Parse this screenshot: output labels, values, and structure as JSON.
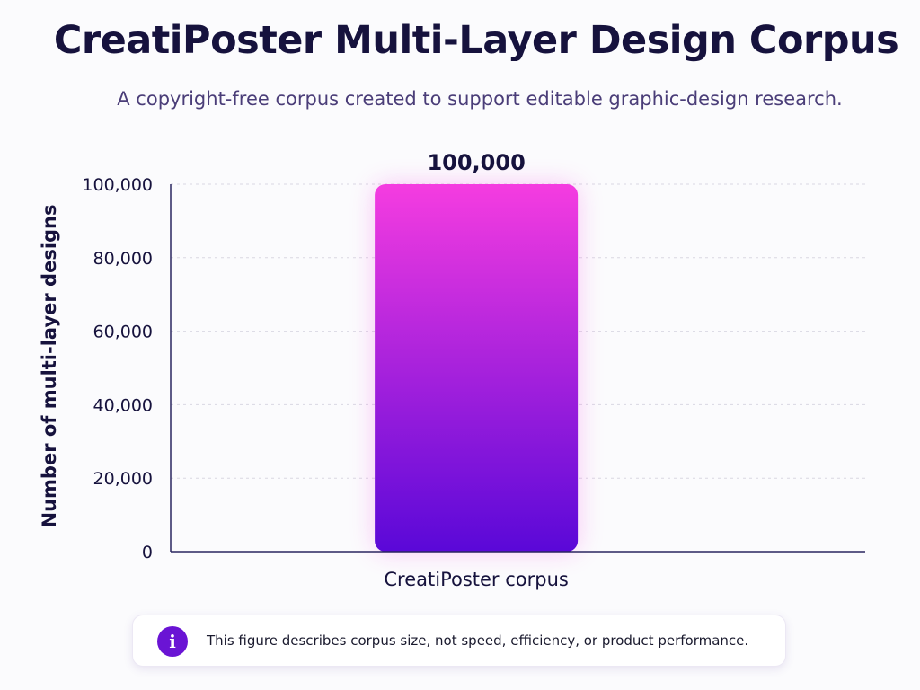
{
  "header": {
    "title": "CreatiPoster Multi-Layer Design Corpus",
    "subtitle": "A copyright-free corpus created to support editable graphic-design research."
  },
  "chart_data": {
    "type": "bar",
    "categories": [
      "CreatiPoster corpus"
    ],
    "values": [
      100000
    ],
    "data_labels": [
      "100,000"
    ],
    "ylabel": "Number of multi-layer designs",
    "ylim": [
      0,
      100000
    ],
    "yticks": [
      0,
      20000,
      40000,
      60000,
      80000,
      100000
    ],
    "ytick_labels": [
      "0",
      "20,000",
      "40,000",
      "60,000",
      "80,000",
      "100,000"
    ],
    "grid": true,
    "legend": "none",
    "colors": {
      "bar_top": "#f53ce0",
      "bar_bottom": "#5a08d8",
      "axis": "#2a2660",
      "grid": "#d9d7e2",
      "text": "#16123d"
    }
  },
  "note": {
    "icon": "info-icon",
    "icon_glyph": "i",
    "text": "This figure describes corpus size, not speed, efficiency, or product performance."
  }
}
